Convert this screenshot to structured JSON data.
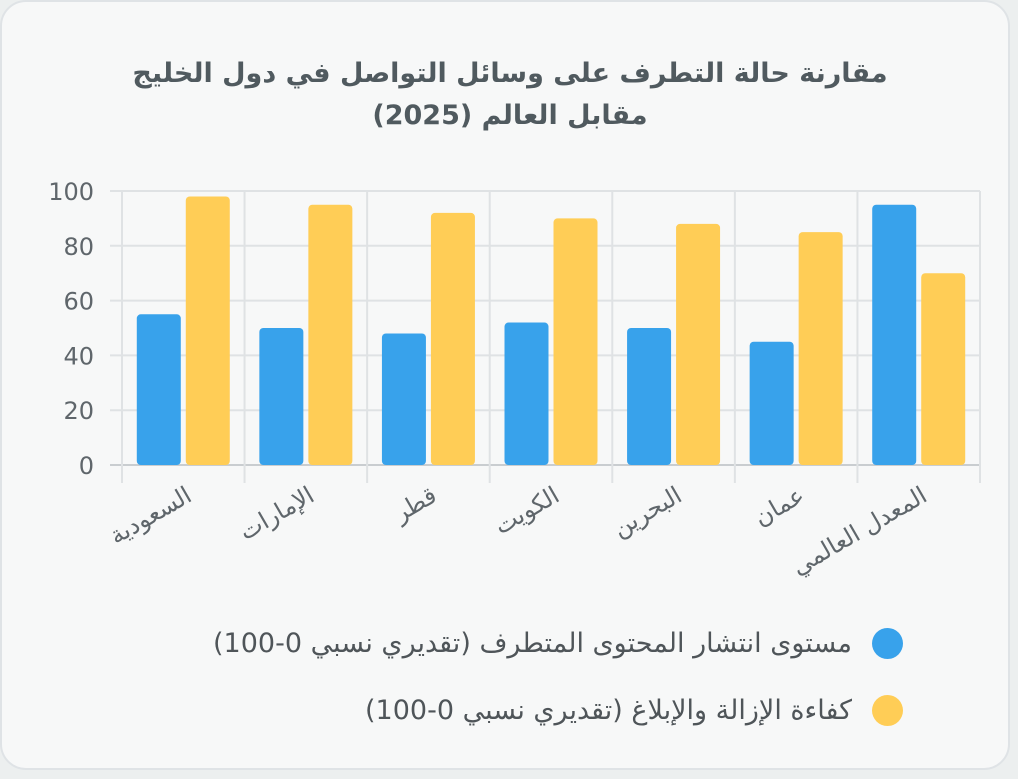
{
  "chart_data": {
    "type": "bar",
    "title": [
      "مقارنة حالة التطرف على وسائل التواصل في دول الخليج",
      "مقابل العالم (2025)"
    ],
    "categories": [
      "السعودية",
      "الإمارات",
      "قطر",
      "الكويت",
      "البحرين",
      "عمان",
      "المعدل العالمي"
    ],
    "series": [
      {
        "name": "مستوى انتشار المحتوى المتطرف (تقديري نسبي 0-100)",
        "color": "#38a2eb",
        "values": [
          55,
          50,
          48,
          52,
          50,
          45,
          95
        ]
      },
      {
        "name": "كفاءة الإزالة والإبلاغ (تقديري نسبي 0-100)",
        "color": "#ffcd56",
        "values": [
          98,
          95,
          92,
          90,
          88,
          85,
          70
        ]
      }
    ],
    "ylim": [
      0,
      100
    ],
    "yticks": [
      0,
      20,
      40,
      60,
      80,
      100
    ],
    "grid": true,
    "legend_position": "bottom"
  }
}
